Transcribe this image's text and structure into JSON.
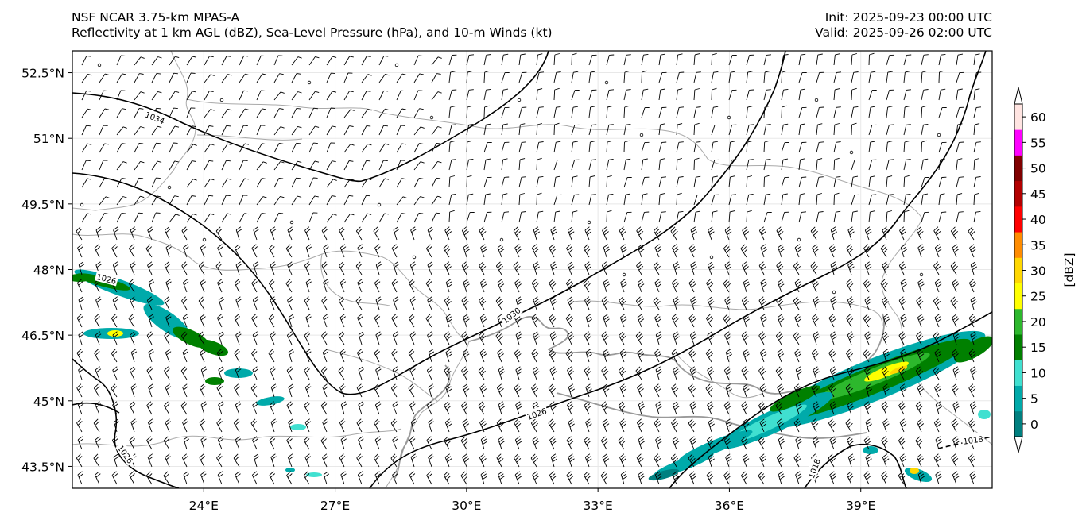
{
  "header": {
    "model_line": "NSF NCAR 3.75-km MPAS-A",
    "field_line": "Reflectivity at 1 km AGL (dBZ), Sea-Level Pressure (hPa), and 10-m Winds (kt)",
    "init_line": "Init: 2025-09-23 00:00 UTC",
    "valid_line": "Valid: 2025-09-26 02:00 UTC"
  },
  "map": {
    "lon_range": [
      21,
      42
    ],
    "lat_range": [
      43,
      53
    ],
    "lon_ticks": [
      {
        "value": 24,
        "label": "24°E"
      },
      {
        "value": 27,
        "label": "27°E"
      },
      {
        "value": 30,
        "label": "30°E"
      },
      {
        "value": 33,
        "label": "33°E"
      },
      {
        "value": 36,
        "label": "36°E"
      },
      {
        "value": 39,
        "label": "39°E"
      }
    ],
    "lat_ticks": [
      {
        "value": 52.5,
        "label": "52.5°N"
      },
      {
        "value": 51,
        "label": "51°N"
      },
      {
        "value": 49.5,
        "label": "49.5°N"
      },
      {
        "value": 48,
        "label": "48°N"
      },
      {
        "value": 46.5,
        "label": "46.5°N"
      },
      {
        "value": 45,
        "label": "45°N"
      },
      {
        "value": 43.5,
        "label": "43.5°N"
      }
    ],
    "isobar_labels": [
      "1034",
      "1030",
      "1026",
      "1026",
      "1026",
      "1018",
      "1018"
    ]
  },
  "colorbar": {
    "label": "[dBZ]",
    "ticks": [
      "0",
      "5",
      "10",
      "15",
      "20",
      "25",
      "30",
      "35",
      "40",
      "45",
      "50",
      "55",
      "60"
    ],
    "colors": [
      "#008080",
      "#00aaaa",
      "#40e0d0",
      "#008000",
      "#2db82d",
      "#ffff00",
      "#ffd700",
      "#ff8c00",
      "#ff0000",
      "#b30000",
      "#800000",
      "#ff00ff",
      "#ffe4e1"
    ]
  }
}
